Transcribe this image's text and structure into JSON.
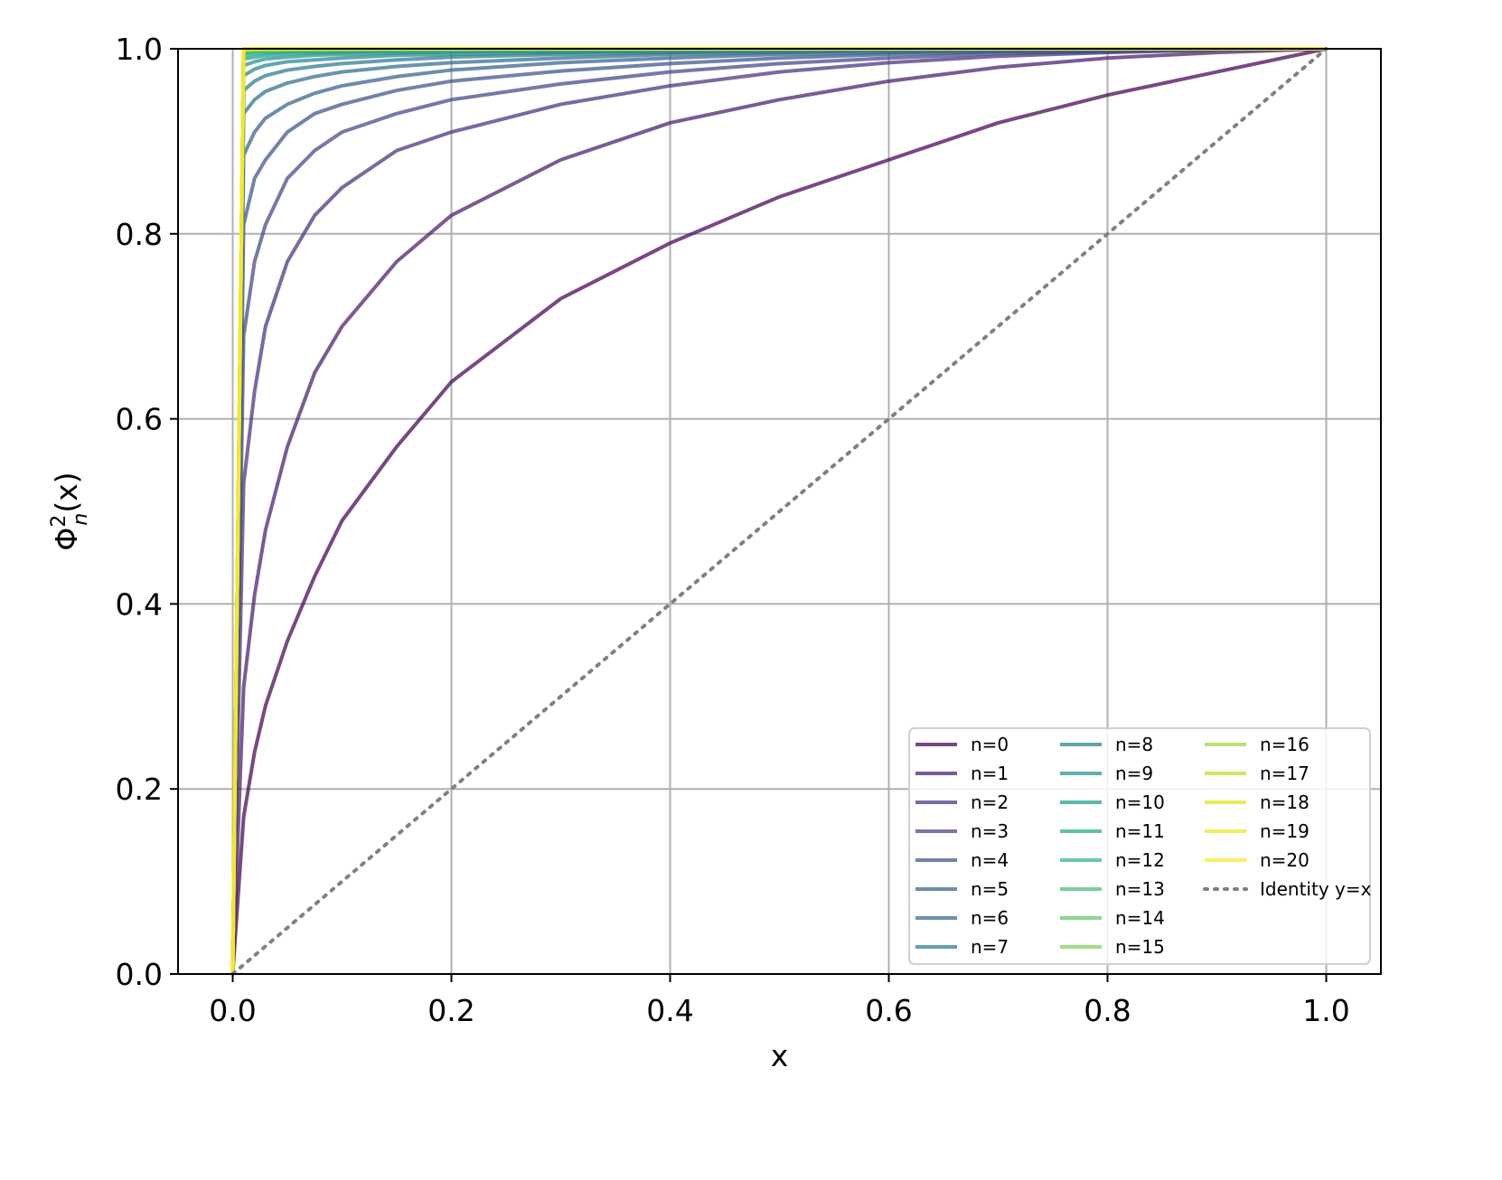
{
  "chart_data": {
    "type": "line",
    "title": "",
    "xlabel": "x",
    "ylabel": "Φ²ₙ(x)",
    "ylabel_parts": {
      "base": "Φ",
      "sup": "2",
      "sub": "n",
      "arg": "(x)"
    },
    "xlim": [
      -0.05,
      1.05
    ],
    "ylim": [
      0.0,
      1.0
    ],
    "x_ticks": [
      0.0,
      0.2,
      0.4,
      0.6,
      0.8,
      1.0
    ],
    "x_tick_labels": [
      "0.0",
      "0.2",
      "0.4",
      "0.6",
      "0.8",
      "1.0"
    ],
    "y_ticks": [
      0.0,
      0.2,
      0.4,
      0.6,
      0.8,
      1.0
    ],
    "y_tick_labels": [
      "0.0",
      "0.2",
      "0.4",
      "0.6",
      "0.8",
      "1.0"
    ],
    "grid": true,
    "legend_placement": "lower-right",
    "legend_columns": 3,
    "sample_x": [
      0,
      0.01,
      0.02,
      0.03,
      0.05,
      0.075,
      0.1,
      0.15,
      0.2,
      0.3,
      0.4,
      0.5,
      0.6,
      0.7,
      0.8,
      0.9,
      1.0
    ],
    "series": [
      {
        "name": "n=0",
        "color": "#440154",
        "style": "solid",
        "y": [
          0.0,
          0.17,
          0.24,
          0.29,
          0.36,
          0.43,
          0.49,
          0.57,
          0.64,
          0.73,
          0.79,
          0.84,
          0.88,
          0.92,
          0.95,
          0.975,
          1.0
        ]
      },
      {
        "name": "n=1",
        "color": "#481a6c",
        "style": "solid",
        "y": [
          0.0,
          0.31,
          0.41,
          0.48,
          0.57,
          0.65,
          0.7,
          0.77,
          0.82,
          0.88,
          0.92,
          0.945,
          0.965,
          0.98,
          0.99,
          0.996,
          1.0
        ]
      },
      {
        "name": "n=2",
        "color": "#472f7d",
        "style": "solid",
        "y": [
          0.0,
          0.53,
          0.63,
          0.7,
          0.77,
          0.82,
          0.85,
          0.89,
          0.91,
          0.94,
          0.96,
          0.975,
          0.985,
          0.992,
          0.996,
          0.999,
          1.0
        ]
      },
      {
        "name": "n=3",
        "color": "#414487",
        "style": "solid",
        "y": [
          0.0,
          0.69,
          0.77,
          0.81,
          0.86,
          0.89,
          0.91,
          0.93,
          0.945,
          0.962,
          0.975,
          0.984,
          0.99,
          0.995,
          0.997,
          0.999,
          1.0
        ]
      },
      {
        "name": "n=4",
        "color": "#3b528b",
        "style": "solid",
        "y": [
          0.0,
          0.81,
          0.86,
          0.88,
          0.91,
          0.93,
          0.94,
          0.955,
          0.965,
          0.976,
          0.984,
          0.99,
          0.994,
          0.997,
          0.998,
          0.9995,
          1.0
        ]
      },
      {
        "name": "n=5",
        "color": "#355f8d",
        "style": "solid",
        "y": [
          0.0,
          0.885,
          0.91,
          0.925,
          0.94,
          0.952,
          0.96,
          0.97,
          0.977,
          0.985,
          0.99,
          0.994,
          0.996,
          0.998,
          0.999,
          0.9997,
          1.0
        ]
      },
      {
        "name": "n=6",
        "color": "#2f6c8e",
        "style": "solid",
        "y": [
          0.0,
          0.93,
          0.945,
          0.954,
          0.963,
          0.97,
          0.975,
          0.981,
          0.985,
          0.99,
          0.994,
          0.996,
          0.998,
          0.999,
          0.9994,
          0.9998,
          1.0
        ]
      },
      {
        "name": "n=7",
        "color": "#2a788e",
        "style": "solid",
        "y": [
          0.0,
          0.955,
          0.965,
          0.971,
          0.977,
          0.981,
          0.984,
          0.988,
          0.991,
          0.994,
          0.996,
          0.9975,
          0.9985,
          0.9992,
          0.9996,
          0.9999,
          1.0
        ]
      },
      {
        "name": "n=8",
        "color": "#25848e",
        "style": "solid",
        "y": [
          0.0,
          0.971,
          0.978,
          0.982,
          0.986,
          0.988,
          0.99,
          0.993,
          0.994,
          0.996,
          0.9975,
          0.9985,
          0.999,
          0.9995,
          0.9997,
          0.9999,
          1.0
        ]
      },
      {
        "name": "n=9",
        "color": "#21918c",
        "style": "solid",
        "y": [
          0.0,
          0.982,
          0.986,
          0.989,
          0.991,
          0.993,
          0.994,
          0.9955,
          0.9965,
          0.9977,
          0.9985,
          0.999,
          0.9994,
          0.9997,
          0.9998,
          0.99995,
          1.0
        ]
      },
      {
        "name": "n=10",
        "color": "#1e9c89",
        "style": "solid",
        "y": [
          0.0,
          0.989,
          0.991,
          0.993,
          0.9945,
          0.9955,
          0.9963,
          0.9972,
          0.9978,
          0.9986,
          0.9991,
          0.9994,
          0.9996,
          0.9998,
          0.9999,
          0.99997,
          1.0
        ]
      },
      {
        "name": "n=11",
        "color": "#22a884",
        "style": "solid",
        "y": [
          0.0,
          0.993,
          0.9945,
          0.9957,
          0.9966,
          0.9972,
          0.9977,
          0.9983,
          0.9987,
          0.9991,
          0.9994,
          0.9996,
          0.9998,
          0.9999,
          0.99994,
          0.99998,
          1.0
        ]
      },
      {
        "name": "n=12",
        "color": "#2fb47c",
        "style": "solid",
        "y": [
          0.0,
          0.9955,
          0.9966,
          0.9973,
          0.9979,
          0.9983,
          0.9986,
          0.999,
          0.9992,
          0.9995,
          0.9996,
          0.9998,
          0.9999,
          0.99995,
          0.99997,
          0.99999,
          1.0
        ]
      },
      {
        "name": "n=13",
        "color": "#44bf70",
        "style": "solid",
        "y": [
          0.0,
          0.9972,
          0.9979,
          0.9983,
          0.9987,
          0.999,
          0.9991,
          0.9994,
          0.9995,
          0.9997,
          0.9998,
          0.9999,
          0.99995,
          0.99997,
          0.99998,
          0.99999,
          1.0
        ]
      },
      {
        "name": "n=14",
        "color": "#5ec962",
        "style": "solid",
        "y": [
          0.0,
          0.9982,
          0.9987,
          0.999,
          0.9992,
          0.9994,
          0.9995,
          0.9996,
          0.9997,
          0.9998,
          0.99988,
          0.99993,
          0.99996,
          0.99998,
          0.99999,
          0.999995,
          1.0
        ]
      },
      {
        "name": "n=15",
        "color": "#7ad151",
        "style": "solid",
        "y": [
          0.0,
          0.9989,
          0.9992,
          0.9994,
          0.9995,
          0.9996,
          0.9997,
          0.9998,
          0.9998,
          0.9999,
          0.99993,
          0.99996,
          0.99998,
          0.99999,
          0.999995,
          0.999998,
          1.0
        ]
      },
      {
        "name": "n=16",
        "color": "#9bd93c",
        "style": "solid",
        "y": [
          0.0,
          0.9993,
          0.9995,
          0.9996,
          0.9997,
          0.9998,
          0.9998,
          0.9999,
          0.9999,
          0.99994,
          0.99996,
          0.99998,
          0.99999,
          0.999995,
          0.999997,
          0.999999,
          1.0
        ]
      },
      {
        "name": "n=17",
        "color": "#bddf26",
        "style": "solid",
        "y": [
          0.0,
          0.9996,
          0.9997,
          0.9998,
          0.9998,
          0.9999,
          0.9999,
          0.99994,
          0.99995,
          0.99997,
          0.99998,
          0.99999,
          0.999994,
          0.999997,
          0.999998,
          0.999999,
          1.0
        ]
      },
      {
        "name": "n=18",
        "color": "#dfe318",
        "style": "solid",
        "y": [
          0.0,
          0.9997,
          0.9998,
          0.9999,
          0.9999,
          0.99993,
          0.99995,
          0.99996,
          0.99997,
          0.99998,
          0.99999,
          0.999994,
          0.999996,
          0.999998,
          0.999999,
          0.9999995,
          1.0
        ]
      },
      {
        "name": "n=19",
        "color": "#f1e51d",
        "style": "solid",
        "y": [
          0.0,
          0.9998,
          0.9999,
          0.99993,
          0.99995,
          0.99996,
          0.99997,
          0.99998,
          0.99998,
          0.99999,
          0.999994,
          0.999996,
          0.999998,
          0.999999,
          0.9999994,
          0.9999998,
          1.0
        ]
      },
      {
        "name": "n=20",
        "color": "#fde725",
        "style": "solid",
        "y": [
          0.0,
          0.9999,
          0.99993,
          0.99995,
          0.99997,
          0.99998,
          0.99998,
          0.99999,
          0.99999,
          0.999994,
          0.999996,
          0.999998,
          0.999999,
          0.9999994,
          0.9999997,
          0.9999999,
          1.0
        ]
      },
      {
        "name": "Identity y=x",
        "color": "#808080",
        "style": "dotted",
        "y": [
          0,
          0.01,
          0.02,
          0.03,
          0.05,
          0.075,
          0.1,
          0.15,
          0.2,
          0.3,
          0.4,
          0.5,
          0.6,
          0.7,
          0.8,
          0.9,
          1.0
        ]
      }
    ]
  }
}
